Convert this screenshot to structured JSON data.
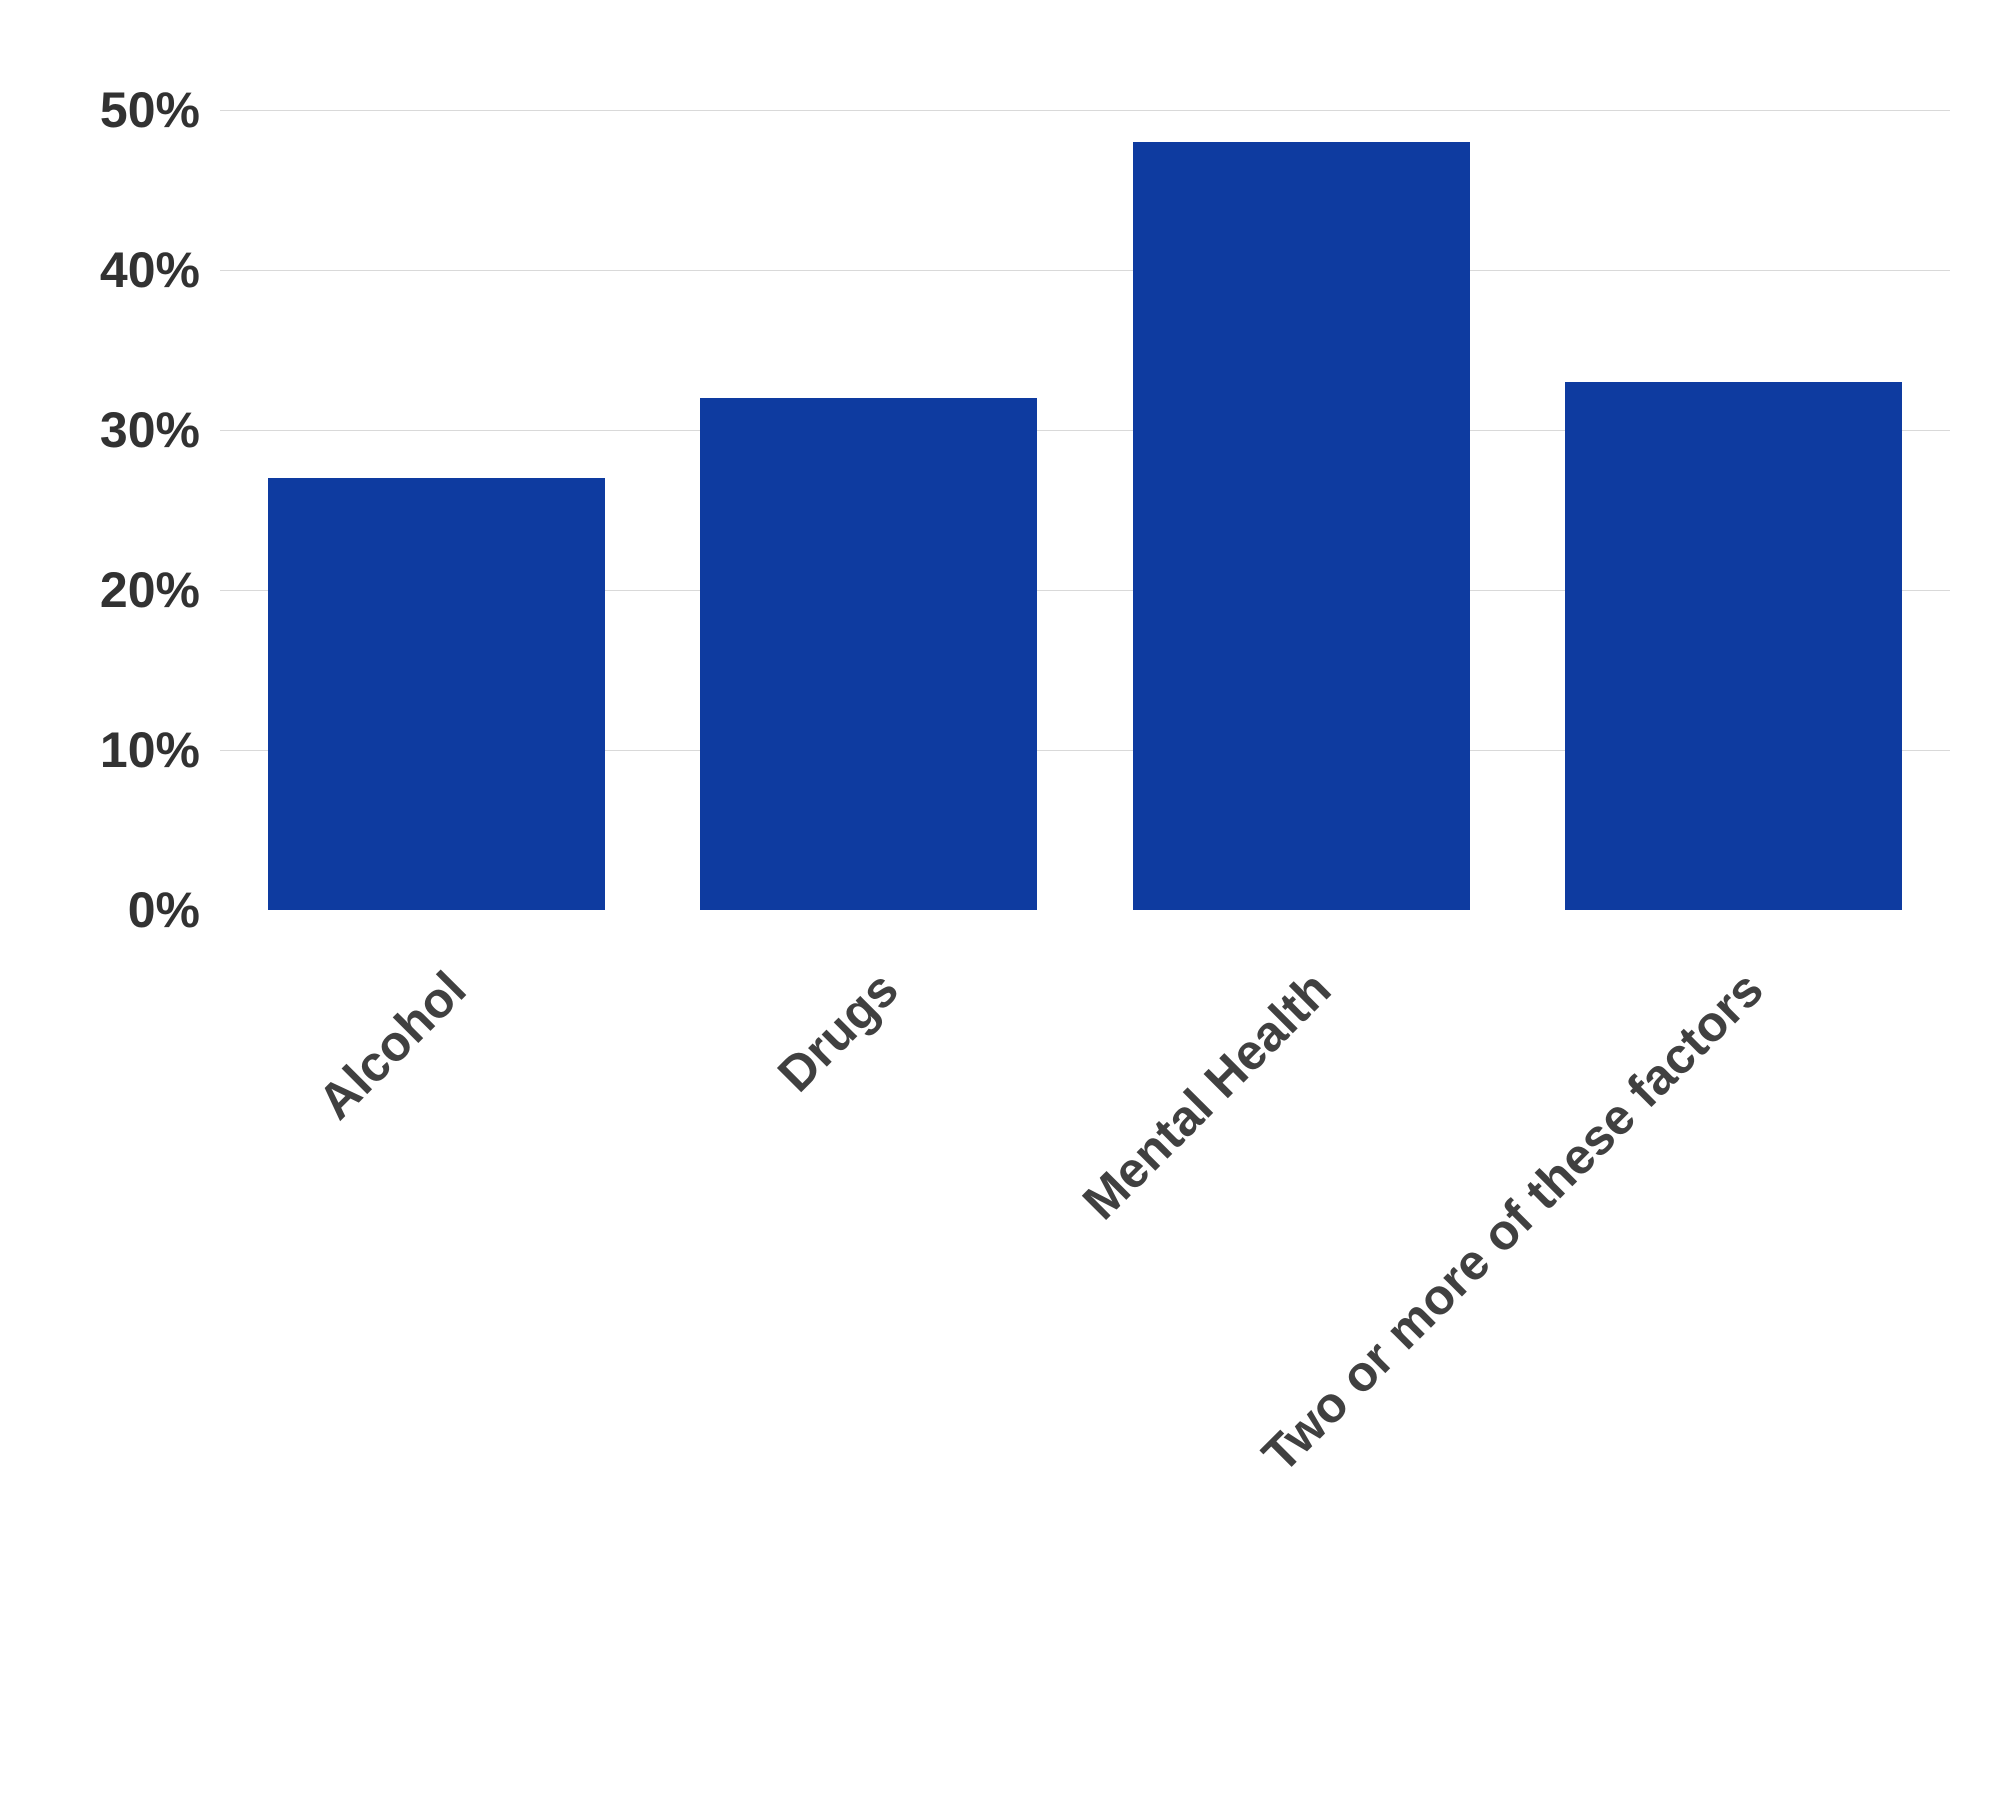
{
  "chart": {
    "type": "bar",
    "categories": [
      "Alcohol",
      "Drugs",
      "Mental Health",
      "Two or more of these factors"
    ],
    "values": [
      27,
      32,
      48,
      33
    ],
    "bar_color": "#0e3ba0",
    "background_color": "#ffffff",
    "grid_color": "#d9d9d9",
    "ylim": [
      0,
      50
    ],
    "ytick_step": 10,
    "yticks": [
      0,
      10,
      20,
      30,
      40,
      50
    ],
    "ytick_labels": [
      "0%",
      "10%",
      "20%",
      "30%",
      "40%",
      "50%"
    ],
    "tick_label_color": "#323232",
    "tick_label_fontsize": 50,
    "tick_label_fontweight": "bold",
    "xlabel_color": "#404040",
    "xlabel_fontsize": 50,
    "xlabel_rotation": -45,
    "bar_width": 0.78
  }
}
